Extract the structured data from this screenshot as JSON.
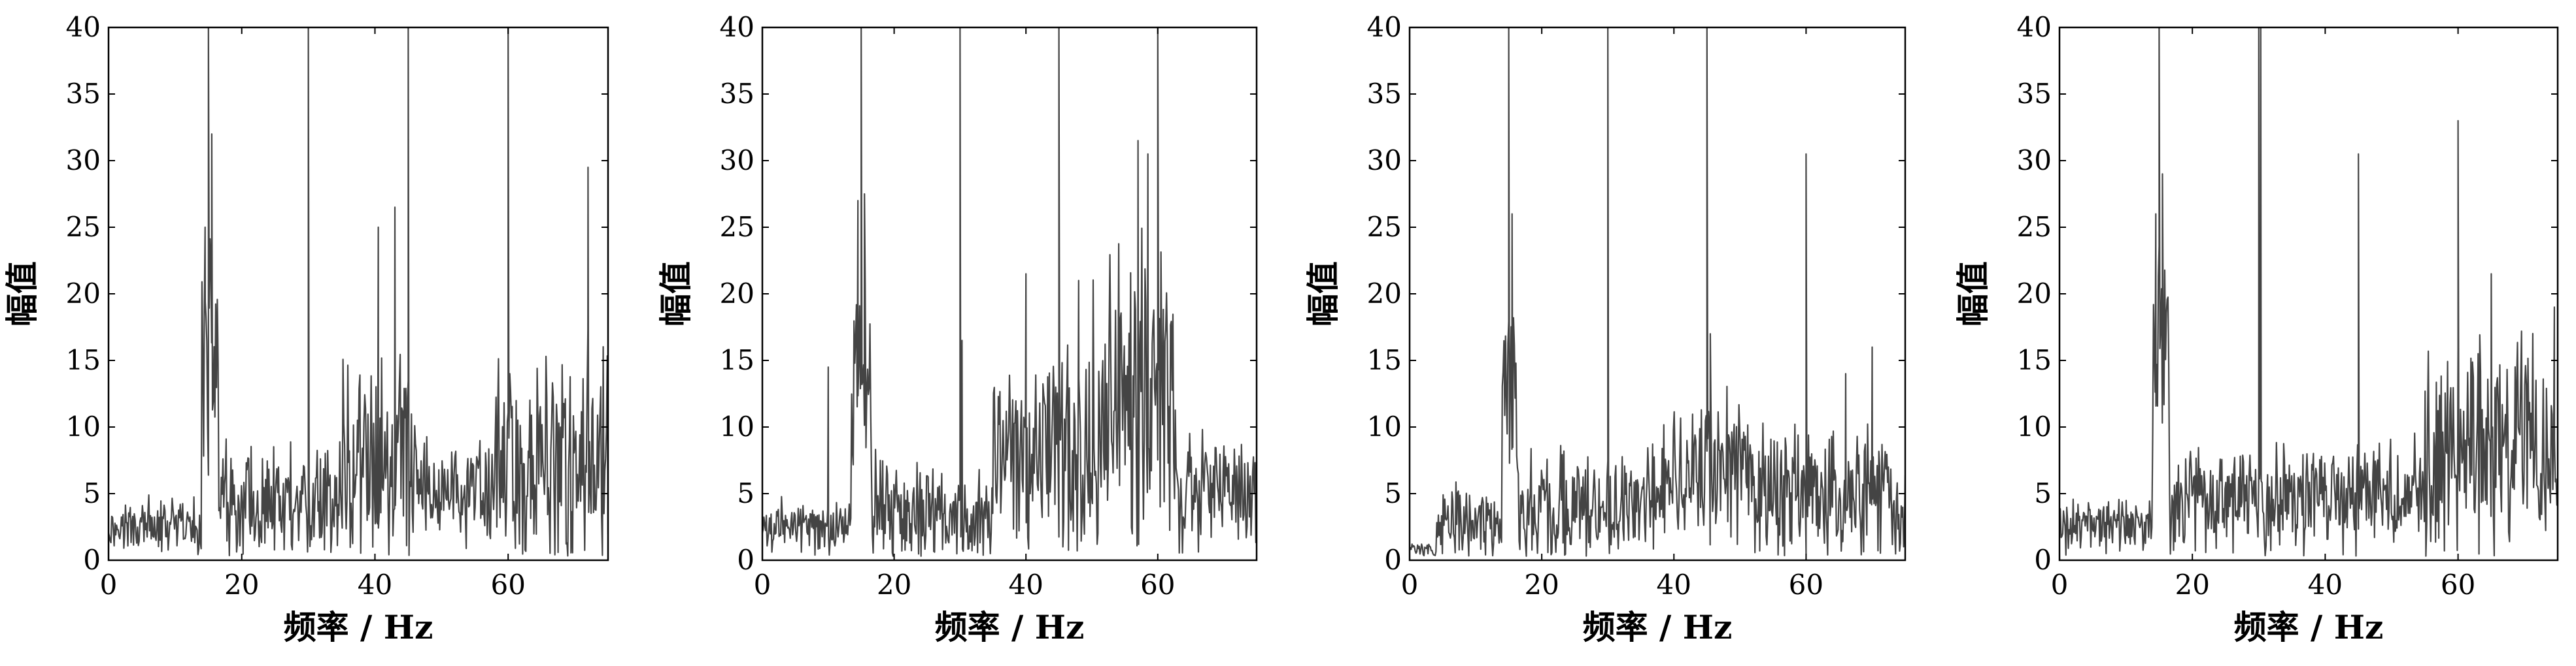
{
  "chart_data": [
    {
      "type": "line",
      "xlabel": "频率 / Hz",
      "ylabel": "幅值",
      "xlim": [
        0,
        75
      ],
      "ylim": [
        0,
        40
      ],
      "xticks": [
        0,
        20,
        40,
        60
      ],
      "yticks": [
        0,
        5,
        10,
        15,
        20,
        25,
        30,
        35,
        40
      ],
      "grid": false,
      "series": [
        {
          "style": "noisy-spectrum",
          "noise": [
            {
              "from": 0,
              "to": 14,
              "base": 2.5,
              "amp": 2.5
            },
            {
              "from": 14,
              "to": 16.5,
              "base": 15,
              "amp": 10
            },
            {
              "from": 16.5,
              "to": 35,
              "base": 4.5,
              "amp": 5
            },
            {
              "from": 35,
              "to": 46,
              "base": 7.5,
              "amp": 10
            },
            {
              "from": 46,
              "to": 58,
              "base": 5,
              "amp": 5
            },
            {
              "from": 58,
              "to": 75,
              "base": 7.5,
              "amp": 10
            }
          ],
          "peaks": [
            {
              "x": 14.5,
              "y": 25
            },
            {
              "x": 15,
              "y": 40
            },
            {
              "x": 15.5,
              "y": 32
            },
            {
              "x": 30,
              "y": 40
            },
            {
              "x": 45,
              "y": 40
            },
            {
              "x": 60,
              "y": 40
            },
            {
              "x": 43,
              "y": 26.5
            },
            {
              "x": 40.5,
              "y": 25
            },
            {
              "x": 72,
              "y": 29.5
            }
          ]
        }
      ]
    },
    {
      "type": "line",
      "xlabel": "频率 / Hz",
      "ylabel": "幅值",
      "xlim": [
        0,
        75
      ],
      "ylim": [
        0,
        40
      ],
      "xticks": [
        0,
        20,
        40,
        60
      ],
      "yticks": [
        0,
        5,
        10,
        15,
        20,
        25,
        30,
        35,
        40
      ],
      "grid": false,
      "series": [
        {
          "style": "noisy-spectrum",
          "noise": [
            {
              "from": 0,
              "to": 13.5,
              "base": 2.5,
              "amp": 2.5
            },
            {
              "from": 13.5,
              "to": 16.5,
              "base": 14,
              "amp": 10
            },
            {
              "from": 16.5,
              "to": 35,
              "base": 3.5,
              "amp": 5
            },
            {
              "from": 35,
              "to": 50,
              "base": 7.5,
              "amp": 9
            },
            {
              "from": 50,
              "to": 63,
              "base": 12,
              "amp": 14
            },
            {
              "from": 63,
              "to": 75,
              "base": 5,
              "amp": 6
            }
          ],
          "peaks": [
            {
              "x": 14.5,
              "y": 27
            },
            {
              "x": 15,
              "y": 40
            },
            {
              "x": 15.5,
              "y": 27.5
            },
            {
              "x": 30,
              "y": 40
            },
            {
              "x": 30.3,
              "y": 16.5
            },
            {
              "x": 45,
              "y": 40
            },
            {
              "x": 60,
              "y": 40
            },
            {
              "x": 57,
              "y": 31.5
            },
            {
              "x": 58.5,
              "y": 30.5
            },
            {
              "x": 40,
              "y": 21.5
            },
            {
              "x": 48,
              "y": 21
            },
            {
              "x": 10,
              "y": 14.5
            }
          ]
        }
      ]
    },
    {
      "type": "line",
      "xlabel": "频率 / Hz",
      "ylabel": "幅值",
      "xlim": [
        0,
        75
      ],
      "ylim": [
        0,
        40
      ],
      "xticks": [
        0,
        20,
        40,
        60
      ],
      "yticks": [
        0,
        5,
        10,
        15,
        20,
        25,
        30,
        35,
        40
      ],
      "grid": false,
      "series": [
        {
          "style": "noisy-spectrum",
          "noise": [
            {
              "from": 0,
              "to": 4,
              "base": 0.8,
              "amp": 0.7
            },
            {
              "from": 4,
              "to": 14,
              "base": 2.5,
              "amp": 3.5
            },
            {
              "from": 14,
              "to": 16.5,
              "base": 12,
              "amp": 10
            },
            {
              "from": 16.5,
              "to": 38,
              "base": 4,
              "amp": 5
            },
            {
              "from": 38,
              "to": 52,
              "base": 6.5,
              "amp": 7
            },
            {
              "from": 52,
              "to": 75,
              "base": 5,
              "amp": 6
            }
          ],
          "peaks": [
            {
              "x": 15,
              "y": 40
            },
            {
              "x": 15.5,
              "y": 26
            },
            {
              "x": 30,
              "y": 40
            },
            {
              "x": 45,
              "y": 40
            },
            {
              "x": 45.5,
              "y": 17
            },
            {
              "x": 60,
              "y": 30.5
            },
            {
              "x": 70,
              "y": 16
            },
            {
              "x": 66,
              "y": 14
            }
          ]
        }
      ]
    },
    {
      "type": "line",
      "xlabel": "频率 / Hz",
      "ylabel": "幅值",
      "xlim": [
        0,
        75
      ],
      "ylim": [
        0,
        40
      ],
      "xticks": [
        0,
        20,
        40,
        60
      ],
      "yticks": [
        0,
        5,
        10,
        15,
        20,
        25,
        30,
        35,
        40
      ],
      "grid": false,
      "series": [
        {
          "style": "noisy-spectrum",
          "noise": [
            {
              "from": 0,
              "to": 14,
              "base": 2.5,
              "amp": 2.5
            },
            {
              "from": 14,
              "to": 16.5,
              "base": 18,
              "amp": 10
            },
            {
              "from": 16.5,
              "to": 40,
              "base": 4.5,
              "amp": 5
            },
            {
              "from": 40,
              "to": 55,
              "base": 5,
              "amp": 5
            },
            {
              "from": 55,
              "to": 75,
              "base": 9,
              "amp": 10
            }
          ],
          "peaks": [
            {
              "x": 14.5,
              "y": 26
            },
            {
              "x": 15,
              "y": 40
            },
            {
              "x": 15.5,
              "y": 29
            },
            {
              "x": 30,
              "y": 40
            },
            {
              "x": 30.3,
              "y": 40
            },
            {
              "x": 45,
              "y": 30.5
            },
            {
              "x": 60,
              "y": 33
            },
            {
              "x": 65,
              "y": 21.5
            },
            {
              "x": 74.5,
              "y": 19
            }
          ]
        }
      ]
    }
  ]
}
